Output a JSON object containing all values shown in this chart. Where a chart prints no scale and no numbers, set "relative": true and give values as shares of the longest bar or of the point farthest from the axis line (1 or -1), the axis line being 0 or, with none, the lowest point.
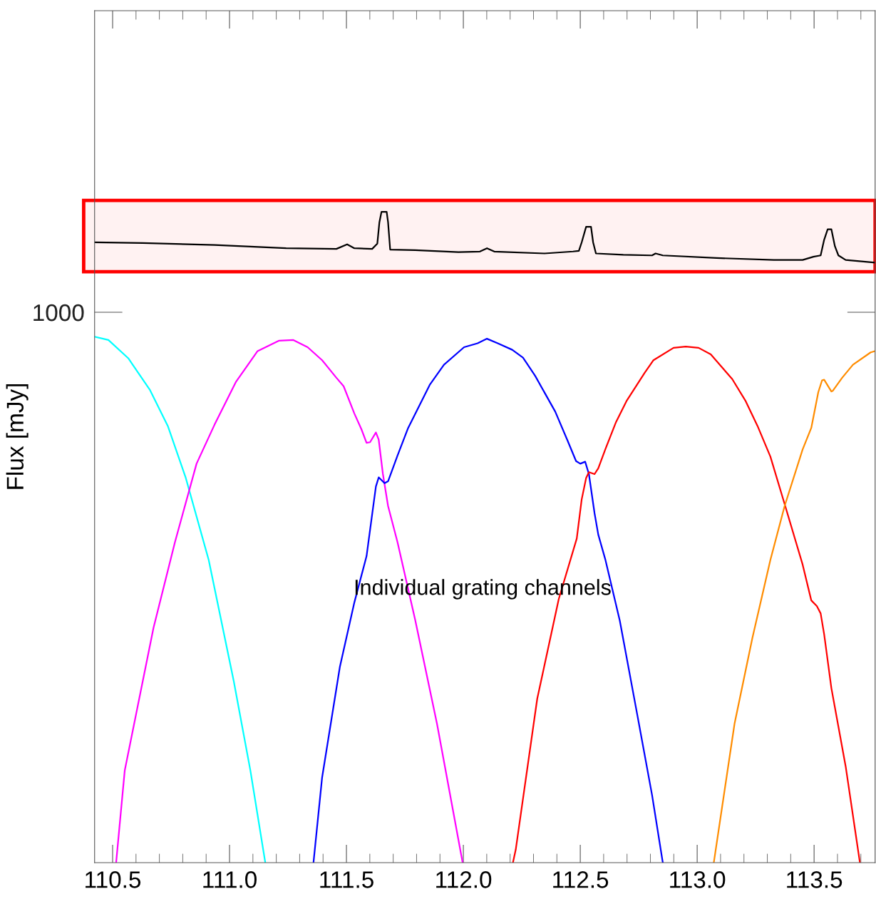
{
  "chart_data": {
    "type": "line",
    "relative": true,
    "ylabel": "Flux [mJy]",
    "xlim": [
      110.423,
      113.761
    ],
    "xticks": [
      {
        "value": 110.5,
        "label": "110.5"
      },
      {
        "value": 111.0,
        "label": "111.0"
      },
      {
        "value": 111.5,
        "label": "111.5"
      },
      {
        "value": 112.0,
        "label": "112.0"
      },
      {
        "value": 112.5,
        "label": "112.5"
      },
      {
        "value": 113.0,
        "label": "113.0"
      },
      {
        "value": 113.5,
        "label": "113.5"
      }
    ],
    "annotations": [
      "1000",
      "Individual grating channels"
    ],
    "bands": [
      {
        "axis": "y",
        "from": 0.908,
        "to": 1.0175,
        "color": "#ff0000"
      }
    ],
    "grid": false,
    "series": [
      {
        "color": "#000000",
        "x": [
          110.423,
          110.629,
          110.936,
          111.242,
          111.457,
          111.503,
          111.534,
          111.61,
          111.632,
          111.641,
          111.65,
          111.672,
          111.678,
          111.687,
          111.794,
          111.979,
          112.071,
          112.101,
          112.132,
          112.347,
          112.469,
          112.494,
          112.506,
          112.525,
          112.546,
          112.555,
          112.567,
          112.684,
          112.807,
          112.822,
          112.853,
          113.083,
          113.328,
          113.451,
          113.497,
          113.528,
          113.543,
          113.558,
          113.574,
          113.589,
          113.604,
          113.635,
          113.761
        ],
        "values": [
          0.953,
          0.952,
          0.949,
          0.944,
          0.943,
          0.95,
          0.944,
          0.943,
          0.951,
          0.984,
          1.0,
          1.0,
          0.984,
          0.942,
          0.941,
          0.938,
          0.939,
          0.944,
          0.939,
          0.936,
          0.939,
          0.94,
          0.953,
          0.977,
          0.977,
          0.953,
          0.936,
          0.934,
          0.933,
          0.936,
          0.933,
          0.929,
          0.926,
          0.926,
          0.931,
          0.933,
          0.957,
          0.973,
          0.973,
          0.947,
          0.933,
          0.926,
          0.922
        ]
      },
      {
        "color": "#00ffff",
        "x": [
          110.423,
          110.482,
          110.567,
          110.66,
          110.736,
          110.813,
          110.911,
          111.018,
          111.089,
          111.153
        ],
        "values": [
          0.808,
          0.803,
          0.775,
          0.726,
          0.671,
          0.591,
          0.465,
          0.279,
          0.142,
          0
        ]
      },
      {
        "color": "#ff00ff",
        "x": [
          110.515,
          110.552,
          110.675,
          110.767,
          110.859,
          110.936,
          111.028,
          111.12,
          111.212,
          111.273,
          111.334,
          111.396,
          111.457,
          111.488,
          111.534,
          111.564,
          111.586,
          111.601,
          111.626,
          111.638,
          111.656,
          111.678,
          111.718,
          111.794,
          111.887,
          111.997
        ],
        "values": [
          0,
          0.142,
          0.361,
          0.493,
          0.613,
          0.673,
          0.739,
          0.786,
          0.802,
          0.803,
          0.792,
          0.772,
          0.745,
          0.732,
          0.69,
          0.666,
          0.645,
          0.646,
          0.661,
          0.65,
          0.597,
          0.548,
          0.493,
          0.373,
          0.214,
          0
        ]
      },
      {
        "color": "#0000ff",
        "x": [
          111.359,
          111.396,
          111.472,
          111.534,
          111.586,
          111.626,
          111.638,
          111.663,
          111.678,
          111.718,
          111.764,
          111.856,
          111.917,
          112.003,
          112.061,
          112.101,
          112.147,
          112.209,
          112.255,
          112.307,
          112.393,
          112.445,
          112.482,
          112.5,
          112.521,
          112.537,
          112.561,
          112.577,
          112.607,
          112.669,
          112.745,
          112.807,
          112.853
        ],
        "values": [
          0,
          0.131,
          0.301,
          0.4,
          0.471,
          0.578,
          0.592,
          0.583,
          0.586,
          0.625,
          0.668,
          0.734,
          0.765,
          0.792,
          0.798,
          0.805,
          0.798,
          0.788,
          0.776,
          0.748,
          0.693,
          0.649,
          0.617,
          0.613,
          0.616,
          0.597,
          0.537,
          0.504,
          0.466,
          0.372,
          0.225,
          0.104,
          0
        ]
      },
      {
        "color": "#ff0000",
        "x": [
          112.212,
          112.224,
          112.316,
          112.408,
          112.485,
          112.506,
          112.525,
          112.537,
          112.561,
          112.577,
          112.607,
          112.653,
          112.699,
          112.776,
          112.813,
          112.899,
          112.951,
          113.006,
          113.058,
          113.15,
          113.206,
          113.258,
          113.313,
          113.374,
          113.451,
          113.488,
          113.512,
          113.528,
          113.543,
          113.574,
          113.635,
          113.696
        ],
        "values": [
          0,
          0.02,
          0.252,
          0.405,
          0.498,
          0.558,
          0.591,
          0.6,
          0.597,
          0.606,
          0.635,
          0.677,
          0.71,
          0.753,
          0.772,
          0.791,
          0.793,
          0.791,
          0.781,
          0.743,
          0.71,
          0.671,
          0.624,
          0.551,
          0.458,
          0.403,
          0.394,
          0.383,
          0.351,
          0.268,
          0.148,
          0
        ]
      },
      {
        "color": "#ff8c00",
        "x": [
          113.071,
          113.16,
          113.236,
          113.313,
          113.374,
          113.451,
          113.488,
          113.518,
          113.534,
          113.543,
          113.574,
          113.58,
          113.62,
          113.666,
          113.742,
          113.761
        ],
        "values": [
          0,
          0.214,
          0.345,
          0.465,
          0.548,
          0.635,
          0.668,
          0.723,
          0.741,
          0.742,
          0.724,
          0.725,
          0.745,
          0.765,
          0.784,
          0.786
        ]
      }
    ]
  }
}
